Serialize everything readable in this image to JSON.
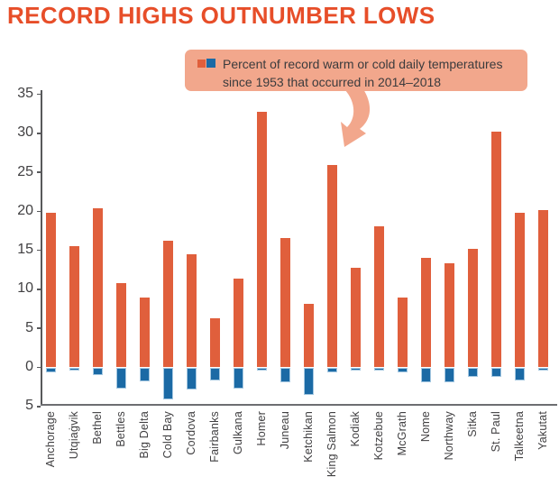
{
  "page": {
    "title": "RECORD HIGHS OUTNUMBER LOWS"
  },
  "legend": {
    "text": "Percent of record warm or cold daily temperatures since 1953 that occurred in 2014–2018",
    "warm_swatch_color": "#E05F3C",
    "cold_swatch_color": "#1B6AA5",
    "box_color": "#F2A78C"
  },
  "colors": {
    "title": "#E74E29",
    "warm_bar": "#E05F3C",
    "cold_bar": "#1B6AA5",
    "axis": "#58595B",
    "text": "#414042"
  },
  "chart_data": {
    "type": "bar",
    "title": "RECORD HIGHS OUTNUMBER LOWS",
    "xlabel": "",
    "ylabel": "",
    "ylim": [
      -5,
      35
    ],
    "y_ticks": [
      35,
      30,
      25,
      20,
      15,
      10,
      5,
      0,
      -5
    ],
    "grid": false,
    "legend_position": "top callout box with arrow pointing into plot",
    "categories": [
      "Anchorage",
      "Utqiaġvik",
      "Bethel",
      "Bettles",
      "Big Delta",
      "Cold Bay",
      "Cordova",
      "Fairbanks",
      "Gulkana",
      "Homer",
      "Juneau",
      "Ketchikan",
      "King Salmon",
      "Kodiak",
      "Kotzebue",
      "McGrath",
      "Nome",
      "Northway",
      "Sitka",
      "St. Paul",
      "Talkeetna",
      "Yakutat"
    ],
    "series": [
      {
        "name": "Percent of record warm daily temperatures since 1953 that occurred in 2014–2018",
        "color": "#E05F3C",
        "values": [
          19.8,
          15.5,
          20.4,
          10.8,
          9.0,
          16.2,
          14.5,
          6.3,
          11.4,
          32.8,
          16.6,
          8.2,
          25.9,
          12.8,
          18.1,
          9.0,
          14.0,
          13.3,
          15.2,
          30.2,
          19.8,
          20.2
        ]
      },
      {
        "name": "Percent of record cold daily temperatures since 1953 that occurred in 2014–2018",
        "color": "#1B6AA5",
        "values": [
          -0.6,
          -0.3,
          -0.9,
          -2.6,
          -1.7,
          -4.1,
          -2.8,
          -1.6,
          -2.6,
          -0.3,
          -1.8,
          -3.5,
          -0.6,
          -0.4,
          -0.3,
          -0.6,
          -1.9,
          -1.8,
          -1.1,
          -1.2,
          -1.6,
          -0.4
        ]
      }
    ]
  }
}
